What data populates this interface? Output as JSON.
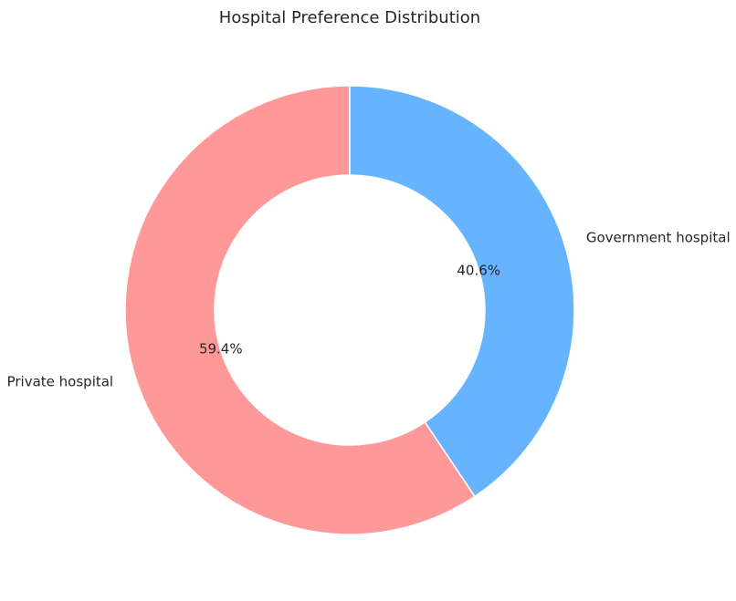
{
  "chart_data": {
    "type": "pie",
    "title": "Hospital Preference Distribution",
    "donut": true,
    "categories": [
      "Private hospital",
      "Government hospital"
    ],
    "values": [
      59.4,
      40.6
    ],
    "percent_labels": [
      "59.4%",
      "40.6%"
    ],
    "colors": [
      "#ff9999",
      "#66b3ff"
    ],
    "slice_edge_color": "#ffffff",
    "start_angle_deg": 90,
    "direction": "counterclockwise",
    "legend": "none"
  }
}
